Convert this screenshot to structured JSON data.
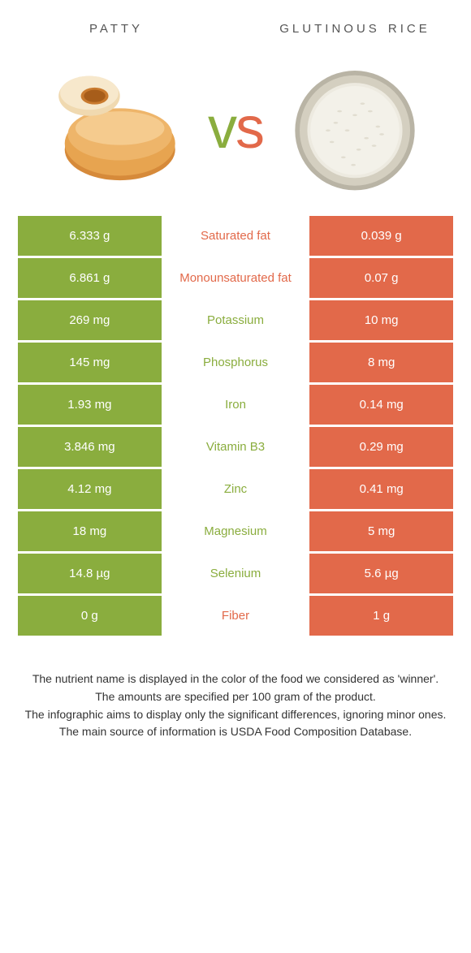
{
  "colors": {
    "left": "#8aad3e",
    "right": "#e2694a",
    "background": "#ffffff",
    "text": "#333333",
    "header_text": "#555555",
    "cell_text": "#ffffff"
  },
  "typography": {
    "title_fontsize": 22,
    "title_letterspacing": 4,
    "vs_fontsize": 72,
    "cell_fontsize": 15,
    "footer_fontsize": 14
  },
  "header": {
    "left_title": "patty",
    "right_title": "glutinous rice",
    "vs_v": "v",
    "vs_s": "s"
  },
  "rows": [
    {
      "left": "6.333 g",
      "label": "Saturated fat",
      "right": "0.039 g",
      "winner": "right"
    },
    {
      "left": "6.861 g",
      "label": "Monounsaturated fat",
      "right": "0.07 g",
      "winner": "right"
    },
    {
      "left": "269 mg",
      "label": "Potassium",
      "right": "10 mg",
      "winner": "left"
    },
    {
      "left": "145 mg",
      "label": "Phosphorus",
      "right": "8 mg",
      "winner": "left"
    },
    {
      "left": "1.93 mg",
      "label": "Iron",
      "right": "0.14 mg",
      "winner": "left"
    },
    {
      "left": "3.846 mg",
      "label": "Vitamin B3",
      "right": "0.29 mg",
      "winner": "left"
    },
    {
      "left": "4.12 mg",
      "label": "Zinc",
      "right": "0.41 mg",
      "winner": "left"
    },
    {
      "left": "18 mg",
      "label": "Magnesium",
      "right": "5 mg",
      "winner": "left"
    },
    {
      "left": "14.8 µg",
      "label": "Selenium",
      "right": "5.6 µg",
      "winner": "left"
    },
    {
      "left": "0 g",
      "label": "Fiber",
      "right": "1 g",
      "winner": "right"
    }
  ],
  "footer": {
    "line1": "The nutrient name is displayed in the color of the food we considered as 'winner'.",
    "line2": "The amounts are specified per 100 gram of the product.",
    "line3": "The infographic aims to display only the significant differences, ignoring minor ones.",
    "line4": "The main source of information is USDA Food Composition Database."
  }
}
